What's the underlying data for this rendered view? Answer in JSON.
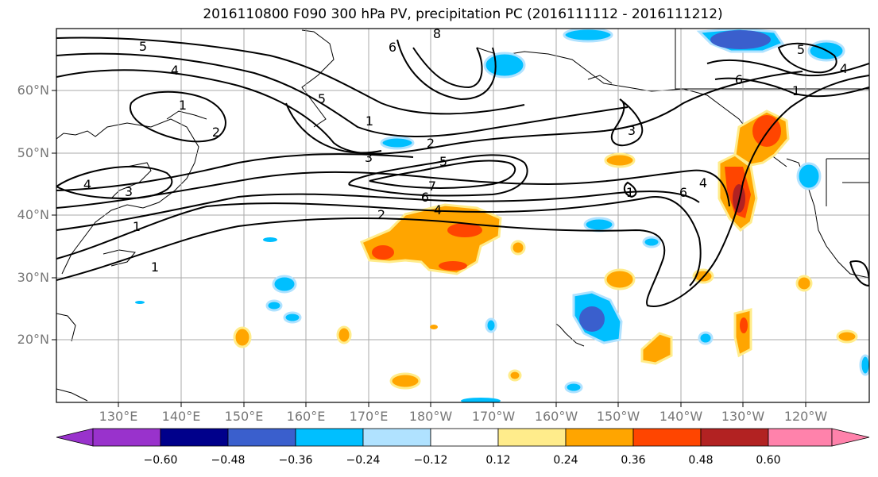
{
  "title": "2016110800 F090 300 hPa PV, precipitation PC (2016111112 - 2016111212)",
  "lat_labels": [
    "60°N",
    "50°N",
    "40°N",
    "30°N",
    "20°N"
  ],
  "lon_labels": [
    "130°E",
    "140°E",
    "150°E",
    "160°E",
    "170°E",
    "180°W",
    "170°W",
    "160°W",
    "150°W",
    "140°W",
    "130°W",
    "120°W"
  ],
  "colorbar": {
    "ticks": [
      "−0.60",
      "−0.48",
      "−0.36",
      "−0.24",
      "−0.12",
      "0.12",
      "0.24",
      "0.36",
      "0.48",
      "0.60"
    ],
    "colors": [
      "#9932CC",
      "#00008B",
      "#3A5FCD",
      "#00BFFF",
      "#B0E2FF",
      "#FFFFFF",
      "#FFEC8B",
      "#FFA500",
      "#FF4500",
      "#B22222",
      "#FF82AB"
    ]
  },
  "contour_labels": [
    "5",
    "4",
    "1",
    "2",
    "4",
    "3",
    "1",
    "6",
    "8",
    "5",
    "1",
    "2",
    "3",
    "5",
    "7",
    "6",
    "2",
    "4",
    "1",
    "1",
    "3",
    "6",
    "4",
    "6",
    "5",
    "4",
    "1"
  ]
}
